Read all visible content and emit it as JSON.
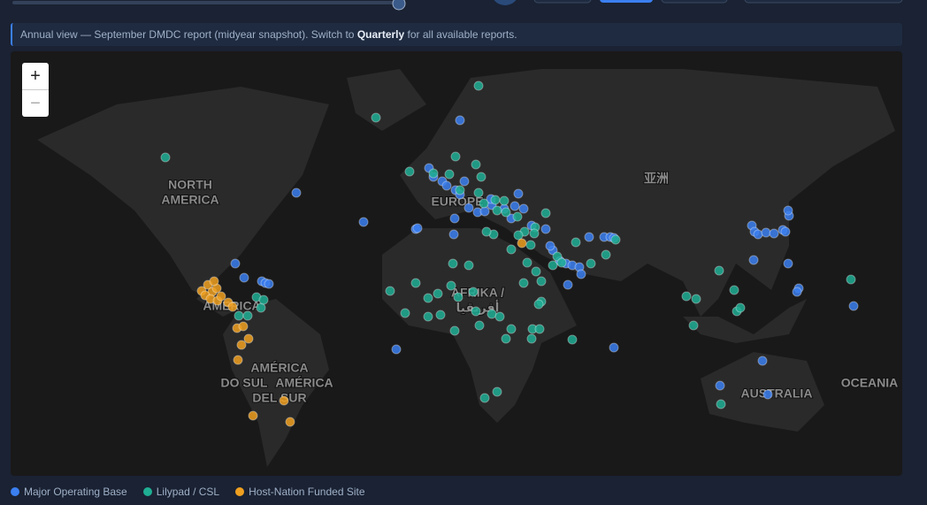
{
  "banner": {
    "prefix": "Annual view — September DMDC report (midyear snapshot). Switch to",
    "link": "Quarterly",
    "suffix": "for all available reports."
  },
  "zoom": {
    "in": "+",
    "out": "−"
  },
  "map_labels": [
    "NORTH",
    "AMERICA",
    "EUROPE",
    "亚洲",
    "AFRIKA /",
    "أفريقيا",
    "AMERICA",
    "AMÉRICA",
    "DO SUL",
    "AMÉRICA",
    "DEL SUR",
    "AUSTRALIA",
    "OCEANIA"
  ],
  "legend": [
    {
      "name": "Major Operating Base",
      "color": "#3b7ff0"
    },
    {
      "name": "Lilypad / CSL",
      "color": "#1fae94"
    },
    {
      "name": "Host-Nation Funded Site",
      "color": "#f0a020"
    }
  ]
}
